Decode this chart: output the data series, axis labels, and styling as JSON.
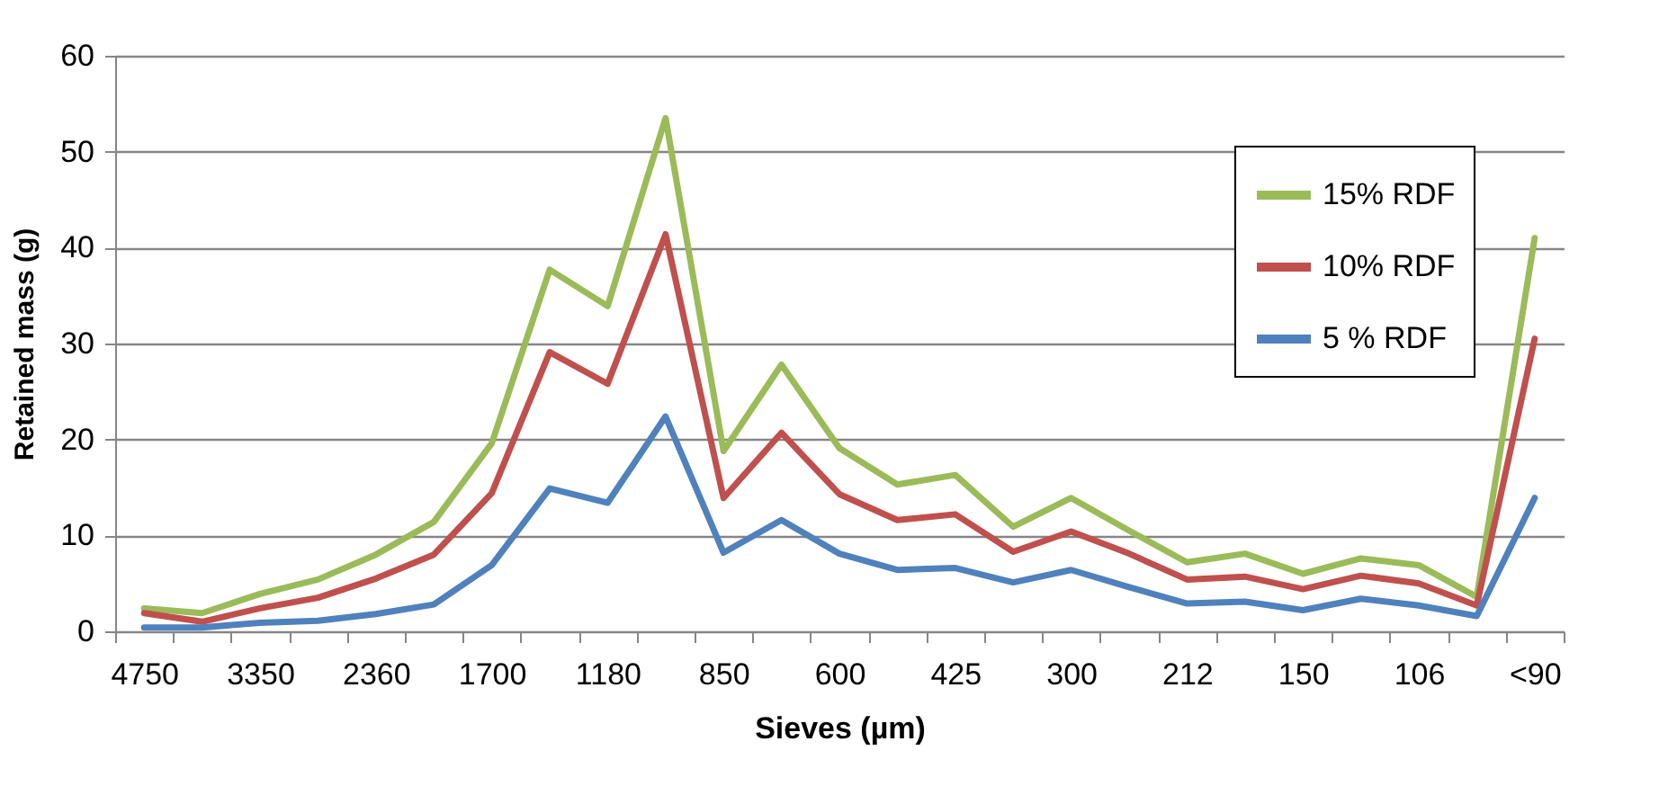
{
  "chart_data": {
    "type": "line",
    "xlabel": "Sieves (µm)",
    "ylabel": "Retained mass (g)",
    "categories": [
      "4750",
      null,
      "3350",
      null,
      "2360",
      null,
      "1700",
      null,
      "1180",
      null,
      "850",
      null,
      "600",
      null,
      "425",
      null,
      "300",
      null,
      "212",
      null,
      "150",
      null,
      "106",
      null,
      "<90"
    ],
    "series": [
      {
        "name": "15% RDF",
        "color": "#9bbb59",
        "values": [
          2.4,
          1.9,
          3.9,
          5.4,
          8.0,
          11.4,
          19.6,
          37.7,
          33.9,
          53.5,
          18.8,
          27.8,
          19.1,
          15.3,
          16.3,
          10.9,
          13.9,
          10.5,
          7.2,
          8.1,
          6.0,
          7.6,
          6.9,
          3.6,
          41.0
        ]
      },
      {
        "name": "10% RDF",
        "color": "#c0504d",
        "values": [
          1.9,
          1.0,
          2.4,
          3.5,
          5.5,
          8.0,
          14.4,
          29.1,
          25.8,
          41.4,
          13.9,
          20.7,
          14.3,
          11.6,
          12.2,
          8.3,
          10.4,
          8.1,
          5.4,
          5.7,
          4.4,
          5.8,
          5.0,
          2.7,
          30.5
        ]
      },
      {
        "name": "5 % RDF",
        "color": "#4f81bd",
        "values": [
          0.4,
          0.4,
          0.9,
          1.1,
          1.8,
          2.8,
          6.9,
          14.9,
          13.4,
          22.4,
          8.2,
          11.6,
          8.1,
          6.4,
          6.6,
          5.1,
          6.4,
          4.6,
          2.9,
          3.1,
          2.2,
          3.4,
          2.7,
          1.6,
          13.9
        ]
      }
    ],
    "ylim": [
      0,
      60
    ],
    "yticks": [
      0,
      10,
      20,
      30,
      40,
      50,
      60
    ],
    "grid": "y",
    "legend": "top right",
    "marker": "none",
    "line_style": "solid"
  }
}
